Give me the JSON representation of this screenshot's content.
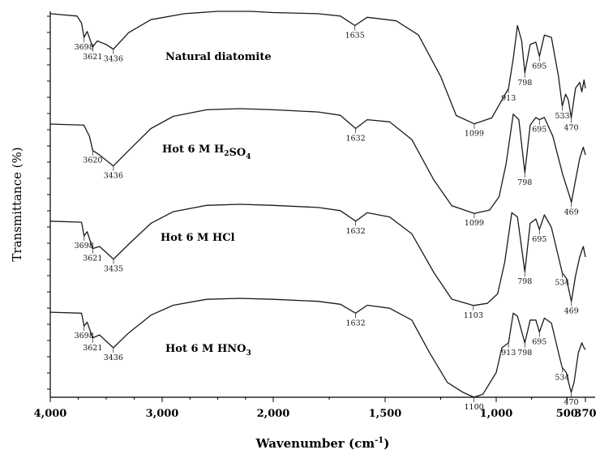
{
  "chart_data": {
    "type": "line",
    "xlabel": "Wavenumber (cm",
    "xlabel_sup": "-1",
    "xlabel_close": ")",
    "ylabel": "Transmittance (%)",
    "xlim": [
      4000,
      370
    ],
    "x_reversed": true,
    "x_ticks": [
      {
        "value": 4000,
        "label": "4,000"
      },
      {
        "value": 3000,
        "label": "3,000"
      },
      {
        "value": 2000,
        "label": "2,000"
      },
      {
        "value": 1500,
        "label": "1,500"
      },
      {
        "value": 1000,
        "label": "1,000"
      },
      {
        "value": 500,
        "label": "500"
      },
      {
        "value": 370,
        "label": "370"
      }
    ],
    "series": [
      {
        "name": "Natural diatomite",
        "name_parts": [],
        "points": [
          [
            4000,
            0.98
          ],
          [
            3760,
            0.96
          ],
          [
            3720,
            0.9
          ],
          [
            3698,
            0.78
          ],
          [
            3670,
            0.83
          ],
          [
            3621,
            0.7
          ],
          [
            3580,
            0.75
          ],
          [
            3500,
            0.72
          ],
          [
            3436,
            0.68
          ],
          [
            3300,
            0.82
          ],
          [
            3100,
            0.93
          ],
          [
            2800,
            0.98
          ],
          [
            2500,
            1.0
          ],
          [
            2200,
            1.0
          ],
          [
            2000,
            0.99
          ],
          [
            1800,
            0.98
          ],
          [
            1700,
            0.96
          ],
          [
            1635,
            0.88
          ],
          [
            1580,
            0.95
          ],
          [
            1450,
            0.92
          ],
          [
            1350,
            0.8
          ],
          [
            1250,
            0.45
          ],
          [
            1180,
            0.12
          ],
          [
            1099,
            0.05
          ],
          [
            1020,
            0.1
          ],
          [
            960,
            0.25
          ],
          [
            913,
            0.35
          ],
          [
            880,
            0.6
          ],
          [
            850,
            0.88
          ],
          [
            820,
            0.75
          ],
          [
            798,
            0.48
          ],
          [
            760,
            0.72
          ],
          [
            720,
            0.74
          ],
          [
            695,
            0.62
          ],
          [
            660,
            0.8
          ],
          [
            610,
            0.78
          ],
          [
            560,
            0.45
          ],
          [
            533,
            0.2
          ],
          [
            510,
            0.3
          ],
          [
            490,
            0.25
          ],
          [
            470,
            0.1
          ],
          [
            440,
            0.35
          ],
          [
            410,
            0.4
          ],
          [
            395,
            0.32
          ],
          [
            380,
            0.42
          ],
          [
            370,
            0.35
          ]
        ],
        "peaks": [
          {
            "x": 3698,
            "label": "3698"
          },
          {
            "x": 3621,
            "label": "3621"
          },
          {
            "x": 3436,
            "label": "3436"
          },
          {
            "x": 1635,
            "label": "1635"
          },
          {
            "x": 1099,
            "label": "1099"
          },
          {
            "x": 913,
            "label": "913"
          },
          {
            "x": 798,
            "label": "798"
          },
          {
            "x": 695,
            "label": "695"
          },
          {
            "x": 533,
            "label": "533"
          },
          {
            "x": 470,
            "label": "470"
          }
        ]
      },
      {
        "name": "Hot 6 M H2SO4",
        "name_parts": [
          {
            "t": "Hot 6 M H"
          },
          {
            "t": "2",
            "sub": true
          },
          {
            "t": "SO"
          },
          {
            "t": "4",
            "sub": true
          }
        ],
        "points": [
          [
            4000,
            0.86
          ],
          [
            3700,
            0.85
          ],
          [
            3650,
            0.75
          ],
          [
            3620,
            0.62
          ],
          [
            3560,
            0.58
          ],
          [
            3436,
            0.48
          ],
          [
            3300,
            0.62
          ],
          [
            3100,
            0.82
          ],
          [
            2900,
            0.93
          ],
          [
            2600,
            0.99
          ],
          [
            2300,
            1.0
          ],
          [
            2000,
            0.99
          ],
          [
            1800,
            0.97
          ],
          [
            1700,
            0.94
          ],
          [
            1632,
            0.82
          ],
          [
            1580,
            0.9
          ],
          [
            1480,
            0.88
          ],
          [
            1380,
            0.72
          ],
          [
            1280,
            0.35
          ],
          [
            1200,
            0.12
          ],
          [
            1099,
            0.05
          ],
          [
            1030,
            0.08
          ],
          [
            980,
            0.2
          ],
          [
            930,
            0.5
          ],
          [
            880,
            0.95
          ],
          [
            840,
            0.9
          ],
          [
            798,
            0.42
          ],
          [
            760,
            0.85
          ],
          [
            720,
            0.92
          ],
          [
            695,
            0.9
          ],
          [
            660,
            0.92
          ],
          [
            600,
            0.75
          ],
          [
            530,
            0.4
          ],
          [
            480,
            0.2
          ],
          [
            469,
            0.15
          ],
          [
            440,
            0.35
          ],
          [
            410,
            0.55
          ],
          [
            385,
            0.65
          ],
          [
            370,
            0.58
          ]
        ],
        "peaks": [
          {
            "x": 3620,
            "label": "3620"
          },
          {
            "x": 3436,
            "label": "3436"
          },
          {
            "x": 1632,
            "label": "1632"
          },
          {
            "x": 1099,
            "label": "1099"
          },
          {
            "x": 798,
            "label": "798"
          },
          {
            "x": 695,
            "label": "695"
          },
          {
            "x": 469,
            "label": "469"
          }
        ]
      },
      {
        "name": "Hot 6 M HCl",
        "name_parts": [],
        "points": [
          [
            4000,
            0.84
          ],
          [
            3720,
            0.83
          ],
          [
            3698,
            0.7
          ],
          [
            3670,
            0.74
          ],
          [
            3621,
            0.58
          ],
          [
            3560,
            0.6
          ],
          [
            3435,
            0.48
          ],
          [
            3300,
            0.62
          ],
          [
            3100,
            0.82
          ],
          [
            2900,
            0.93
          ],
          [
            2600,
            0.99
          ],
          [
            2300,
            1.0
          ],
          [
            2000,
            0.99
          ],
          [
            1800,
            0.97
          ],
          [
            1700,
            0.94
          ],
          [
            1632,
            0.84
          ],
          [
            1580,
            0.92
          ],
          [
            1480,
            0.88
          ],
          [
            1380,
            0.72
          ],
          [
            1280,
            0.35
          ],
          [
            1200,
            0.1
          ],
          [
            1103,
            0.04
          ],
          [
            1040,
            0.06
          ],
          [
            990,
            0.15
          ],
          [
            940,
            0.45
          ],
          [
            890,
            0.92
          ],
          [
            850,
            0.88
          ],
          [
            798,
            0.36
          ],
          [
            760,
            0.82
          ],
          [
            720,
            0.86
          ],
          [
            695,
            0.76
          ],
          [
            660,
            0.9
          ],
          [
            610,
            0.78
          ],
          [
            560,
            0.5
          ],
          [
            534,
            0.35
          ],
          [
            505,
            0.3
          ],
          [
            469,
            0.08
          ],
          [
            440,
            0.32
          ],
          [
            410,
            0.5
          ],
          [
            385,
            0.6
          ],
          [
            370,
            0.5
          ]
        ],
        "peaks": [
          {
            "x": 3698,
            "label": "3698"
          },
          {
            "x": 3621,
            "label": "3621"
          },
          {
            "x": 3435,
            "label": "3435"
          },
          {
            "x": 1632,
            "label": "1632"
          },
          {
            "x": 1103,
            "label": "1103"
          },
          {
            "x": 798,
            "label": "798"
          },
          {
            "x": 695,
            "label": "695"
          },
          {
            "x": 534,
            "label": "534"
          },
          {
            "x": 469,
            "label": "469"
          }
        ]
      },
      {
        "name": "Hot 6 M HNO3",
        "name_parts": [
          {
            "t": "Hot 6 M HNO"
          },
          {
            "t": "3",
            "sub": true
          }
        ],
        "points": [
          [
            4000,
            0.86
          ],
          [
            3720,
            0.85
          ],
          [
            3698,
            0.72
          ],
          [
            3670,
            0.76
          ],
          [
            3621,
            0.6
          ],
          [
            3560,
            0.63
          ],
          [
            3436,
            0.5
          ],
          [
            3300,
            0.65
          ],
          [
            3100,
            0.83
          ],
          [
            2900,
            0.93
          ],
          [
            2600,
            0.99
          ],
          [
            2300,
            1.0
          ],
          [
            2000,
            0.99
          ],
          [
            1800,
            0.97
          ],
          [
            1700,
            0.94
          ],
          [
            1632,
            0.85
          ],
          [
            1580,
            0.93
          ],
          [
            1480,
            0.9
          ],
          [
            1380,
            0.78
          ],
          [
            1300,
            0.45
          ],
          [
            1220,
            0.15
          ],
          [
            1150,
            0.05
          ],
          [
            1100,
            0.0
          ],
          [
            1060,
            0.03
          ],
          [
            1000,
            0.25
          ],
          [
            960,
            0.5
          ],
          [
            913,
            0.55
          ],
          [
            880,
            0.85
          ],
          [
            850,
            0.82
          ],
          [
            798,
            0.55
          ],
          [
            760,
            0.78
          ],
          [
            720,
            0.78
          ],
          [
            695,
            0.66
          ],
          [
            660,
            0.8
          ],
          [
            610,
            0.75
          ],
          [
            560,
            0.45
          ],
          [
            534,
            0.3
          ],
          [
            505,
            0.25
          ],
          [
            480,
            0.1
          ],
          [
            470,
            0.05
          ],
          [
            450,
            0.15
          ],
          [
            420,
            0.45
          ],
          [
            395,
            0.55
          ],
          [
            380,
            0.5
          ],
          [
            370,
            0.48
          ]
        ],
        "peaks": [
          {
            "x": 3698,
            "label": "3698"
          },
          {
            "x": 3621,
            "label": "3621"
          },
          {
            "x": 3436,
            "label": "3436"
          },
          {
            "x": 1632,
            "label": "1632"
          },
          {
            "x": 1100,
            "label": "1100"
          },
          {
            "x": 913,
            "label": "913"
          },
          {
            "x": 798,
            "label": "798"
          },
          {
            "x": 695,
            "label": "695"
          },
          {
            "x": 534,
            "label": "534"
          },
          {
            "x": 470,
            "label": "470"
          }
        ]
      }
    ]
  }
}
